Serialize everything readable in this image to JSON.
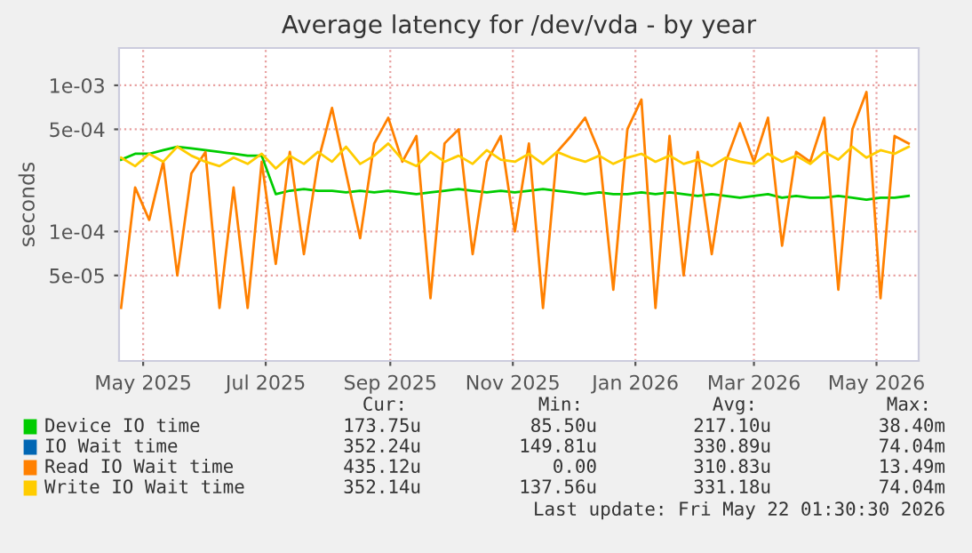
{
  "chart_data": {
    "type": "line",
    "title": "Average latency for /dev/vda - by year",
    "ylabel": "seconds",
    "x": [
      "2025-04-20",
      "2025-04-27",
      "2025-05-04",
      "2025-05-11",
      "2025-05-18",
      "2025-05-25",
      "2025-06-01",
      "2025-06-08",
      "2025-06-15",
      "2025-06-22",
      "2025-06-29",
      "2025-07-06",
      "2025-07-13",
      "2025-07-20",
      "2025-07-27",
      "2025-08-03",
      "2025-08-10",
      "2025-08-17",
      "2025-08-24",
      "2025-08-31",
      "2025-09-07",
      "2025-09-14",
      "2025-09-21",
      "2025-09-28",
      "2025-10-05",
      "2025-10-12",
      "2025-10-19",
      "2025-10-26",
      "2025-11-02",
      "2025-11-09",
      "2025-11-16",
      "2025-11-23",
      "2025-11-30",
      "2025-12-07",
      "2025-12-14",
      "2025-12-21",
      "2025-12-28",
      "2026-01-04",
      "2026-01-11",
      "2026-01-18",
      "2026-01-25",
      "2026-02-01",
      "2026-02-08",
      "2026-02-15",
      "2026-02-22",
      "2026-03-01",
      "2026-03-08",
      "2026-03-15",
      "2026-03-22",
      "2026-03-29",
      "2026-04-05",
      "2026-04-12",
      "2026-04-19",
      "2026-04-26",
      "2026-05-03",
      "2026-05-10",
      "2026-05-17"
    ],
    "series": [
      {
        "name": "Device IO time",
        "color": "#00cc00",
        "values": [
          0.00031,
          0.00034,
          0.00034,
          0.00036,
          0.00038,
          0.00037,
          0.00036,
          0.00035,
          0.00034,
          0.00033,
          0.00033,
          0.00018,
          0.00019,
          0.000195,
          0.00019,
          0.00019,
          0.000185,
          0.00019,
          0.000185,
          0.00019,
          0.000185,
          0.00018,
          0.000185,
          0.00019,
          0.000195,
          0.00019,
          0.000185,
          0.00019,
          0.000185,
          0.00019,
          0.000195,
          0.00019,
          0.000185,
          0.00018,
          0.000185,
          0.00018,
          0.00018,
          0.000185,
          0.00018,
          0.000185,
          0.00018,
          0.000175,
          0.00018,
          0.000175,
          0.00017,
          0.000175,
          0.00018,
          0.00017,
          0.000175,
          0.00017,
          0.00017,
          0.000175,
          0.00017,
          0.000165,
          0.00017,
          0.00017,
          0.000175
        ]
      },
      {
        "name": "IO Wait time",
        "color": "#0066b3",
        "values": [
          null,
          null,
          null,
          null,
          null,
          null,
          null,
          null,
          null,
          null,
          null,
          null,
          null,
          null,
          null,
          null,
          null,
          null,
          null,
          null,
          null,
          null,
          null,
          null,
          null,
          null,
          null,
          null,
          null,
          null,
          null,
          null,
          null,
          null,
          null,
          null,
          null,
          null,
          null,
          null,
          null,
          null,
          null,
          null,
          null,
          null,
          null,
          null,
          null,
          null,
          null,
          null,
          null,
          null,
          null,
          null,
          null
        ]
      },
      {
        "name": "Read IO Wait time",
        "color": "#ff8000",
        "values": [
          3e-05,
          0.0002,
          0.00012,
          0.0003,
          5e-05,
          0.00025,
          0.00035,
          3e-05,
          0.0002,
          3e-05,
          0.0003,
          6e-05,
          0.00035,
          7e-05,
          0.0003,
          0.0007,
          0.00025,
          9e-05,
          0.0004,
          0.0006,
          0.0003,
          0.00045,
          3.5e-05,
          0.0004,
          0.0005,
          7e-05,
          0.0003,
          0.00045,
          0.0001,
          0.0004,
          3e-05,
          0.00035,
          0.00045,
          0.0006,
          0.00035,
          4e-05,
          0.0005,
          0.0008,
          3e-05,
          0.00045,
          5e-05,
          0.00035,
          7e-05,
          0.0003,
          0.00055,
          0.0003,
          0.0006,
          8e-05,
          0.00035,
          0.0003,
          0.0006,
          4e-05,
          0.0005,
          0.0009,
          3.5e-05,
          0.00045,
          0.0004
        ]
      },
      {
        "name": "Write IO Wait time",
        "color": "#ffcc00",
        "values": [
          0.00032,
          0.00028,
          0.00034,
          0.0003,
          0.00038,
          0.00033,
          0.0003,
          0.00028,
          0.00032,
          0.00029,
          0.00034,
          0.00027,
          0.00033,
          0.00029,
          0.00035,
          0.0003,
          0.00038,
          0.00029,
          0.00033,
          0.0004,
          0.00031,
          0.00028,
          0.00035,
          0.0003,
          0.00033,
          0.00029,
          0.00036,
          0.00031,
          0.0003,
          0.00034,
          0.00029,
          0.00035,
          0.00032,
          0.0003,
          0.00033,
          0.00029,
          0.00032,
          0.00034,
          0.0003,
          0.00033,
          0.00029,
          0.00031,
          0.00028,
          0.00032,
          0.0003,
          0.00029,
          0.00034,
          0.0003,
          0.00033,
          0.00029,
          0.00035,
          0.00031,
          0.00038,
          0.00032,
          0.00036,
          0.00034,
          0.00038
        ]
      }
    ],
    "log": "y",
    "ylim": [
      1.3e-05,
      0.0018
    ],
    "yticks": [
      {
        "value": 0.001,
        "label": "1e-03"
      },
      {
        "value": 0.0005,
        "label": "5e-04"
      },
      {
        "value": 0.0001,
        "label": "1e-04"
      },
      {
        "value": 5e-05,
        "label": "5e-05"
      }
    ],
    "xlim": [
      "2025-04-19",
      "2026-05-22"
    ],
    "xticks": [
      {
        "value": "2025-05-01",
        "label": "May 2025"
      },
      {
        "value": "2025-07-01",
        "label": "Jul 2025"
      },
      {
        "value": "2025-09-01",
        "label": "Sep 2025"
      },
      {
        "value": "2025-11-01",
        "label": "Nov 2025"
      },
      {
        "value": "2026-01-01",
        "label": "Jan 2026"
      },
      {
        "value": "2026-03-01",
        "label": "Mar 2026"
      },
      {
        "value": "2026-05-01",
        "label": "May 2026"
      }
    ],
    "grid": true,
    "legend": "bottom",
    "annotations": [
      "Cur:",
      "Min:",
      "Avg:",
      "Max:",
      "173.75u",
      "85.50u",
      "217.10u",
      "38.40m",
      "352.24u",
      "149.81u",
      "330.89u",
      "74.04m",
      "435.12u",
      "0.00",
      "310.83u",
      "13.49m",
      "352.14u",
      "137.56u",
      "331.18u",
      "74.04m",
      "Last update: Fri May 22 01:30:30 2026"
    ]
  }
}
